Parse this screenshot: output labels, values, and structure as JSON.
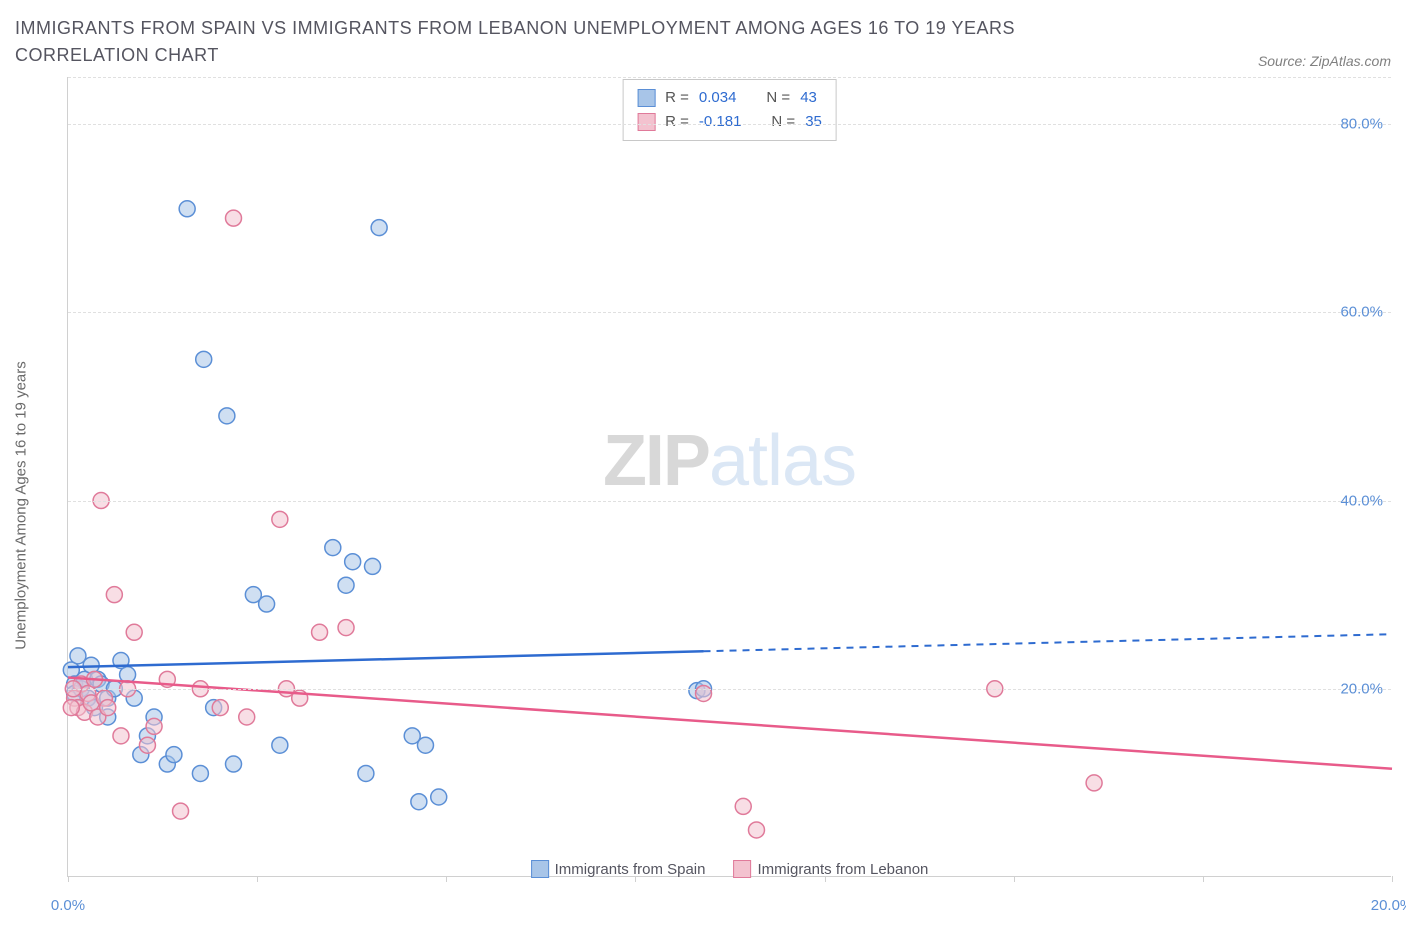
{
  "title": "IMMIGRANTS FROM SPAIN VS IMMIGRANTS FROM LEBANON UNEMPLOYMENT AMONG AGES 16 TO 19 YEARS CORRELATION CHART",
  "source": "Source: ZipAtlas.com",
  "ylabel": "Unemployment Among Ages 16 to 19 years",
  "watermark_a": "ZIP",
  "watermark_b": "atlas",
  "chart": {
    "type": "scatter",
    "xlim": [
      0,
      20
    ],
    "ylim": [
      0,
      85
    ],
    "xticks": [
      0,
      2.86,
      5.71,
      8.57,
      11.43,
      14.29,
      17.14,
      20
    ],
    "xtick_labels": {
      "0": "0.0%",
      "20": "20.0%"
    },
    "yticks": [
      20,
      40,
      60,
      80
    ],
    "ytick_labels": [
      "20.0%",
      "40.0%",
      "60.0%",
      "80.0%"
    ],
    "grid_color": "#e0e0e0",
    "axis_color": "#d0d0d0",
    "tick_label_color": "#5b8fd6",
    "marker_radius": 8,
    "marker_opacity": 0.55,
    "series": [
      {
        "name": "Immigrants from Spain",
        "color_fill": "#a8c5e8",
        "color_stroke": "#5b8fd6",
        "line_color": "#2e6bd0",
        "R": "0.034",
        "N": "43",
        "trend": {
          "x1": 0,
          "y1": 22.3,
          "x2": 20,
          "y2": 25.8,
          "solid_until_x": 9.6
        },
        "points": [
          [
            0.05,
            22
          ],
          [
            0.1,
            20.5
          ],
          [
            0.1,
            19.5
          ],
          [
            0.15,
            23.5
          ],
          [
            0.2,
            20
          ],
          [
            0.25,
            21
          ],
          [
            0.3,
            19
          ],
          [
            0.35,
            22.5
          ],
          [
            0.4,
            18
          ],
          [
            0.45,
            21
          ],
          [
            0.5,
            20.5
          ],
          [
            0.6,
            19
          ],
          [
            0.7,
            20
          ],
          [
            0.8,
            23
          ],
          [
            0.9,
            21.5
          ],
          [
            1.0,
            19
          ],
          [
            1.1,
            13
          ],
          [
            1.2,
            15
          ],
          [
            1.5,
            12
          ],
          [
            1.6,
            13
          ],
          [
            1.8,
            71
          ],
          [
            2.0,
            11
          ],
          [
            2.05,
            55
          ],
          [
            2.2,
            18
          ],
          [
            2.4,
            49
          ],
          [
            2.5,
            12
          ],
          [
            2.8,
            30
          ],
          [
            3.0,
            29
          ],
          [
            3.2,
            14
          ],
          [
            4.0,
            35
          ],
          [
            4.2,
            31
          ],
          [
            4.3,
            33.5
          ],
          [
            4.5,
            11
          ],
          [
            4.6,
            33
          ],
          [
            4.7,
            69
          ],
          [
            5.2,
            15
          ],
          [
            5.3,
            8
          ],
          [
            5.4,
            14
          ],
          [
            5.6,
            8.5
          ],
          [
            9.5,
            19.8
          ],
          [
            9.6,
            20
          ],
          [
            0.6,
            17
          ],
          [
            1.3,
            17
          ]
        ]
      },
      {
        "name": "Immigrants from Lebanon",
        "color_fill": "#f3c2cf",
        "color_stroke": "#e07a9a",
        "line_color": "#e85b8a",
        "R": "-0.181",
        "N": "35",
        "trend": {
          "x1": 0,
          "y1": 21.2,
          "x2": 20,
          "y2": 11.5,
          "solid_until_x": 20
        },
        "points": [
          [
            0.1,
            19
          ],
          [
            0.15,
            18
          ],
          [
            0.2,
            20.5
          ],
          [
            0.25,
            17.5
          ],
          [
            0.3,
            19.5
          ],
          [
            0.35,
            18.5
          ],
          [
            0.4,
            21
          ],
          [
            0.45,
            17
          ],
          [
            0.5,
            40
          ],
          [
            0.55,
            19
          ],
          [
            0.6,
            18
          ],
          [
            0.7,
            30
          ],
          [
            0.9,
            20
          ],
          [
            1.0,
            26
          ],
          [
            1.2,
            14
          ],
          [
            1.5,
            21
          ],
          [
            1.7,
            7
          ],
          [
            2.0,
            20
          ],
          [
            2.3,
            18
          ],
          [
            2.5,
            70
          ],
          [
            2.7,
            17
          ],
          [
            3.2,
            38
          ],
          [
            3.3,
            20
          ],
          [
            3.5,
            19
          ],
          [
            3.8,
            26
          ],
          [
            4.2,
            26.5
          ],
          [
            9.6,
            19.5
          ],
          [
            10.2,
            7.5
          ],
          [
            10.4,
            5
          ],
          [
            14.0,
            20
          ],
          [
            15.5,
            10
          ],
          [
            0.8,
            15
          ],
          [
            1.3,
            16
          ],
          [
            0.05,
            18
          ],
          [
            0.08,
            20
          ]
        ]
      }
    ]
  },
  "stats_labels": {
    "R": "R =",
    "N": "N ="
  },
  "legend_labels": [
    "Immigrants from Spain",
    "Immigrants from Lebanon"
  ]
}
